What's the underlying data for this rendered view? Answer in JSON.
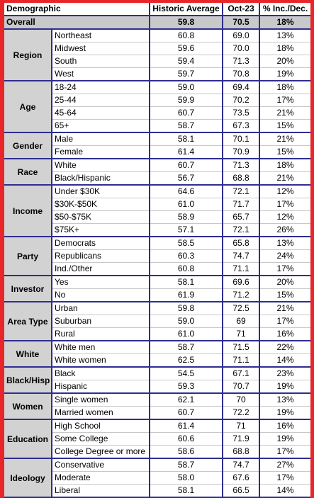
{
  "headers": {
    "demographic": "Demographic",
    "historic": "Historic Average",
    "month": "Oct-23",
    "change": "% Inc./Dec."
  },
  "overall": {
    "label": "Overall",
    "historic": "59.8",
    "month": "70.5",
    "change": "18%"
  },
  "groups": [
    {
      "name": "Region",
      "rows": [
        {
          "label": "Northeast",
          "historic": "60.8",
          "month": "69.0",
          "change": "13%"
        },
        {
          "label": "Midwest",
          "historic": "59.6",
          "month": "70.0",
          "change": "18%"
        },
        {
          "label": "South",
          "historic": "59.4",
          "month": "71.3",
          "change": "20%"
        },
        {
          "label": "West",
          "historic": "59.7",
          "month": "70.8",
          "change": "19%"
        }
      ]
    },
    {
      "name": "Age",
      "rows": [
        {
          "label": "18-24",
          "historic": "59.0",
          "month": "69.4",
          "change": "18%"
        },
        {
          "label": "25-44",
          "historic": "59.9",
          "month": "70.2",
          "change": "17%"
        },
        {
          "label": "45-64",
          "historic": "60.7",
          "month": "73.5",
          "change": "21%"
        },
        {
          "label": "65+",
          "historic": "58.7",
          "month": "67.3",
          "change": "15%"
        }
      ]
    },
    {
      "name": "Gender",
      "rows": [
        {
          "label": "Male",
          "historic": "58.1",
          "month": "70.1",
          "change": "21%"
        },
        {
          "label": "Female",
          "historic": "61.4",
          "month": "70.9",
          "change": "15%"
        }
      ]
    },
    {
      "name": "Race",
      "rows": [
        {
          "label": "White",
          "historic": "60.7",
          "month": "71.3",
          "change": "18%"
        },
        {
          "label": "Black/Hispanic",
          "historic": "56.7",
          "month": "68.8",
          "change": "21%"
        }
      ]
    },
    {
      "name": "Income",
      "rows": [
        {
          "label": "Under $30K",
          "historic": "64.6",
          "month": "72.1",
          "change": "12%"
        },
        {
          "label": "$30K-$50K",
          "historic": "61.0",
          "month": "71.7",
          "change": "17%"
        },
        {
          "label": "$50-$75K",
          "historic": "58.9",
          "month": "65.7",
          "change": "12%"
        },
        {
          "label": "$75K+",
          "historic": "57.1",
          "month": "72.1",
          "change": "26%"
        }
      ]
    },
    {
      "name": "Party",
      "rows": [
        {
          "label": "Democrats",
          "historic": "58.5",
          "month": "65.8",
          "change": "13%"
        },
        {
          "label": "Republicans",
          "historic": "60.3",
          "month": "74.7",
          "change": "24%"
        },
        {
          "label": "Ind./Other",
          "historic": "60.8",
          "month": "71.1",
          "change": "17%"
        }
      ]
    },
    {
      "name": "Investor",
      "rows": [
        {
          "label": "Yes",
          "historic": "58.1",
          "month": "69.6",
          "change": "20%"
        },
        {
          "label": "No",
          "historic": "61.9",
          "month": "71.2",
          "change": "15%"
        }
      ]
    },
    {
      "name": "Area Type",
      "rows": [
        {
          "label": "Urban",
          "historic": "59.8",
          "month": "72.5",
          "change": "21%"
        },
        {
          "label": "Suburban",
          "historic": "59.0",
          "month": "69",
          "change": "17%"
        },
        {
          "label": "Rural",
          "historic": "61.0",
          "month": "71",
          "change": "16%"
        }
      ]
    },
    {
      "name": "White",
      "rows": [
        {
          "label": "White men",
          "historic": "58.7",
          "month": "71.5",
          "change": "22%"
        },
        {
          "label": "White women",
          "historic": "62.5",
          "month": "71.1",
          "change": "14%"
        }
      ]
    },
    {
      "name": "Black/Hisp",
      "rows": [
        {
          "label": "Black",
          "historic": "54.5",
          "month": "67.1",
          "change": "23%"
        },
        {
          "label": "Hispanic",
          "historic": "59.3",
          "month": "70.7",
          "change": "19%"
        }
      ]
    },
    {
      "name": "Women",
      "rows": [
        {
          "label": "Single women",
          "historic": "62.1",
          "month": "70",
          "change": "13%"
        },
        {
          "label": "Married women",
          "historic": "60.7",
          "month": "72.2",
          "change": "19%"
        }
      ]
    },
    {
      "name": "Education",
      "rows": [
        {
          "label": "High School",
          "historic": "61.4",
          "month": "71",
          "change": "16%"
        },
        {
          "label": "Some College",
          "historic": "60.6",
          "month": "71.9",
          "change": "19%"
        },
        {
          "label": "College Degree or more",
          "historic": "58.6",
          "month": "68.8",
          "change": "17%"
        }
      ]
    },
    {
      "name": "Ideology",
      "rows": [
        {
          "label": "Conservative",
          "historic": "58.7",
          "month": "74.7",
          "change": "27%"
        },
        {
          "label": "Moderate",
          "historic": "58.0",
          "month": "67.6",
          "change": "17%"
        },
        {
          "label": "Liberal",
          "historic": "58.1",
          "month": "66.5",
          "change": "14%"
        }
      ]
    }
  ]
}
